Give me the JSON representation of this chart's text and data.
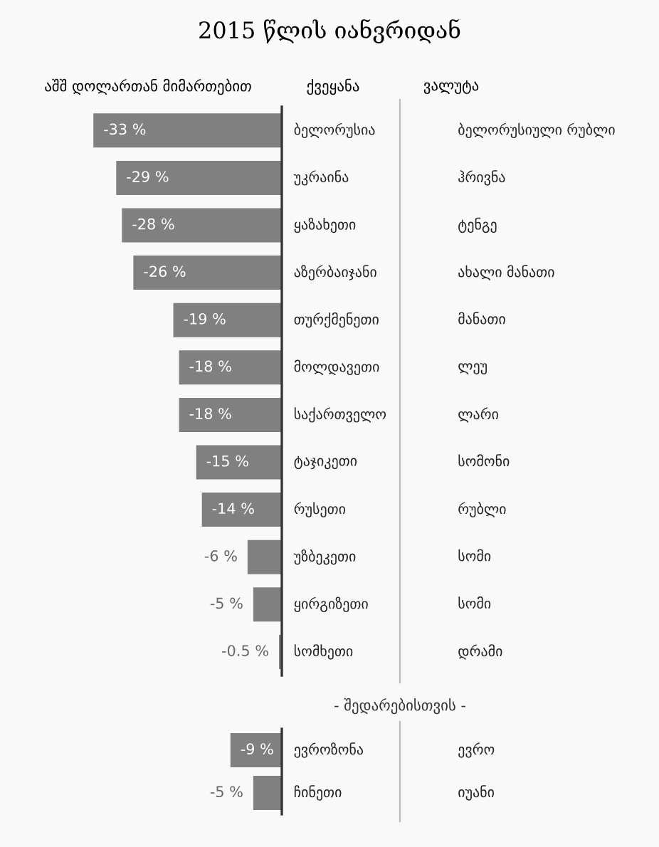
{
  "chart_data": [
    {
      "type": "bar",
      "orientation": "horizontal",
      "title": "2015 წლის იანვრიდან",
      "xlabel": "აშშ დოლართან მიმართებით",
      "ylabel": "ქვეყანა",
      "y2label": "ვალუტა",
      "color": "#808080",
      "categories": [
        "ბელორუსია",
        "უკრაინა",
        "ყაზახეთი",
        "აზერბაიჯანი",
        "თურქმენეთი",
        "მოლდავეთი",
        "საქართველო",
        "ტაჯიკეთი",
        "რუსეთი",
        "უზბეკეთი",
        "ყირგიზეთი",
        "სომხეთი"
      ],
      "y2_categories": [
        "ბელორუსიული რუბლი",
        "ჰრივნა",
        "ტენგე",
        "ახალი მანათი",
        "მანათი",
        "ლეუ",
        "ლარი",
        "სომონი",
        "რუბლი",
        "სომი",
        "სომი",
        "დრამი"
      ],
      "values": [
        -33,
        -29,
        -28,
        -26,
        -19,
        -18,
        -18,
        -15,
        -14,
        -6,
        -5,
        -0.5
      ],
      "value_labels": [
        "-33 %",
        "-29 %",
        "-28 %",
        "-26 %",
        "-19 %",
        "-18 %",
        "-18 %",
        "-15 %",
        "-14 %",
        "-6 %",
        "-5 %",
        "-0.5 %"
      ]
    },
    {
      "type": "bar",
      "orientation": "horizontal",
      "title": "- შედარებისთვის -",
      "color": "#808080",
      "categories": [
        "ევროზონა",
        "ჩინეთი"
      ],
      "y2_categories": [
        "ევრო",
        "იუანი"
      ],
      "values": [
        -9,
        -5
      ],
      "value_labels": [
        "-9 %",
        "-5 %"
      ]
    }
  ]
}
